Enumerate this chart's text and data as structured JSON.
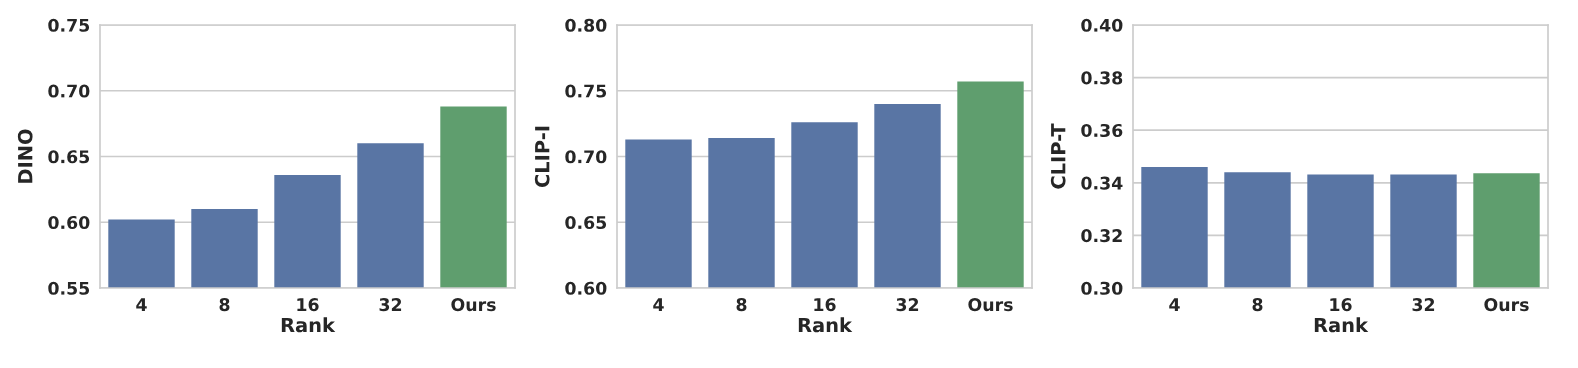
{
  "chart_data": [
    {
      "type": "bar",
      "xlabel": "Rank",
      "ylabel": "DINO",
      "categories": [
        "4",
        "8",
        "16",
        "32",
        "Ours"
      ],
      "values": [
        0.602,
        0.61,
        0.636,
        0.66,
        0.688
      ],
      "colors": [
        "#5975a4",
        "#5975a4",
        "#5975a4",
        "#5975a4",
        "#5f9e6e"
      ],
      "ylim": [
        0.55,
        0.75
      ],
      "yticks": [
        {
          "value": 0.55,
          "label": "0.55"
        },
        {
          "value": 0.6,
          "label": "0.60"
        },
        {
          "value": 0.65,
          "label": "0.65"
        },
        {
          "value": 0.7,
          "label": "0.70"
        },
        {
          "value": 0.75,
          "label": "0.75"
        }
      ],
      "grid": "y"
    },
    {
      "type": "bar",
      "xlabel": "Rank",
      "ylabel": "CLIP-I",
      "categories": [
        "4",
        "8",
        "16",
        "32",
        "Ours"
      ],
      "values": [
        0.713,
        0.714,
        0.726,
        0.74,
        0.757
      ],
      "colors": [
        "#5975a4",
        "#5975a4",
        "#5975a4",
        "#5975a4",
        "#5f9e6e"
      ],
      "ylim": [
        0.6,
        0.8
      ],
      "yticks": [
        {
          "value": 0.6,
          "label": "0.60"
        },
        {
          "value": 0.65,
          "label": "0.65"
        },
        {
          "value": 0.7,
          "label": "0.70"
        },
        {
          "value": 0.75,
          "label": "0.75"
        },
        {
          "value": 0.8,
          "label": "0.80"
        }
      ],
      "grid": "y"
    },
    {
      "type": "bar",
      "xlabel": "Rank",
      "ylabel": "CLIP-T",
      "categories": [
        "4",
        "8",
        "16",
        "32",
        "Ours"
      ],
      "values": [
        0.346,
        0.344,
        0.3432,
        0.3432,
        0.3436
      ],
      "colors": [
        "#5975a4",
        "#5975a4",
        "#5975a4",
        "#5975a4",
        "#5f9e6e"
      ],
      "ylim": [
        0.3,
        0.4
      ],
      "yticks": [
        {
          "value": 0.3,
          "label": "0.30"
        },
        {
          "value": 0.32,
          "label": "0.32"
        },
        {
          "value": 0.34,
          "label": "0.34"
        },
        {
          "value": 0.36,
          "label": "0.36"
        },
        {
          "value": 0.38,
          "label": "0.38"
        },
        {
          "value": 0.4,
          "label": "0.40"
        }
      ],
      "grid": "y"
    }
  ]
}
